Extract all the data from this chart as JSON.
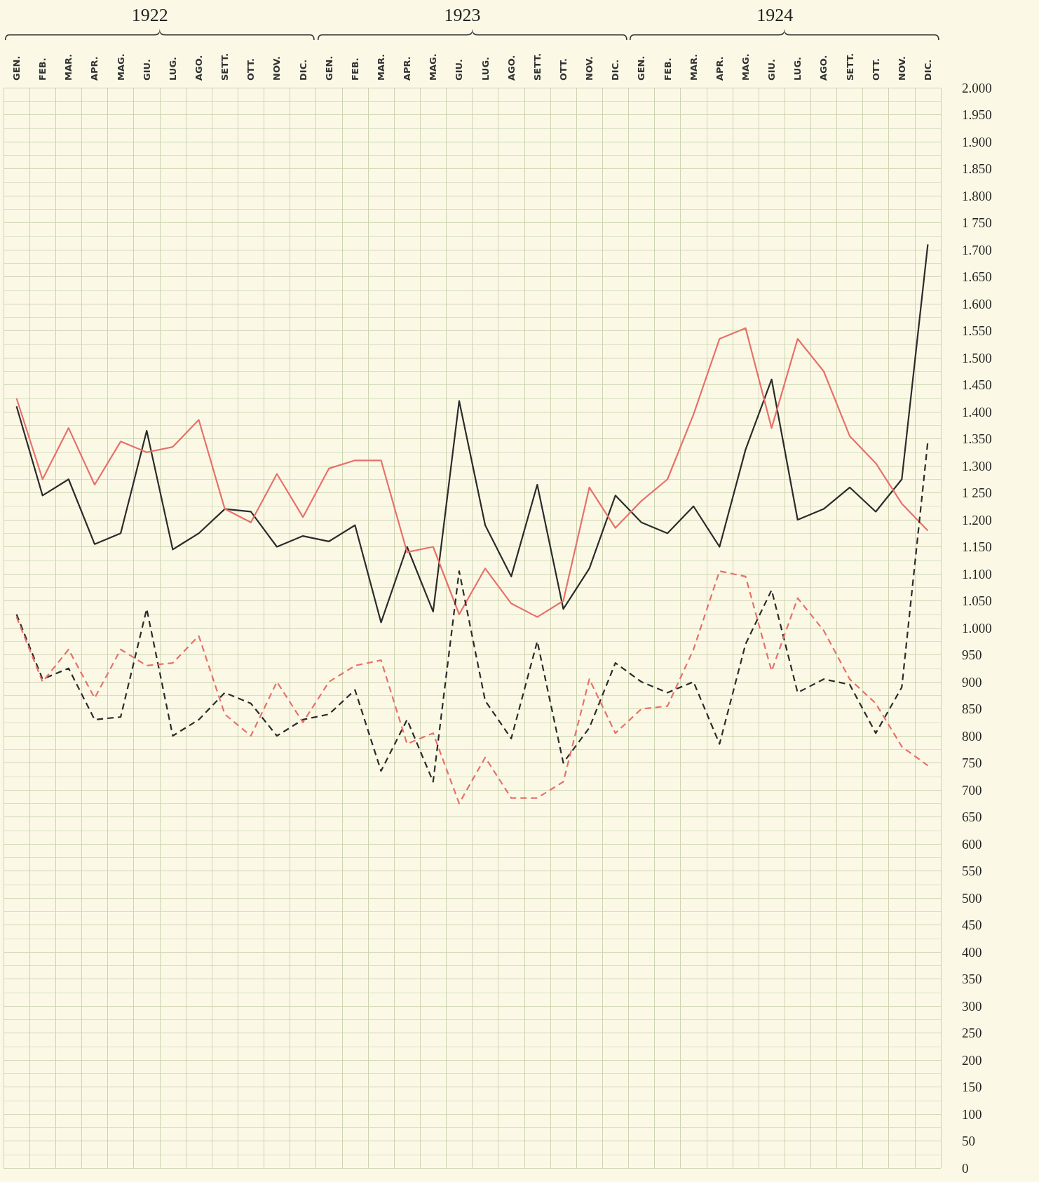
{
  "chart_data": {
    "type": "line",
    "annotations": [
      "1922",
      "1923",
      "1924"
    ],
    "categories": [
      "GEN.",
      "FEB.",
      "MAR.",
      "APR.",
      "MAG.",
      "GIU.",
      "LUG.",
      "AGO.",
      "SETT.",
      "OTT.",
      "NOV.",
      "DIC.",
      "GEN.",
      "FEB.",
      "MAR.",
      "APR.",
      "MAG.",
      "GIU.",
      "LUG.",
      "AGO.",
      "SETT.",
      "OTT.",
      "NOV.",
      "DIC.",
      "GEN.",
      "FEB.",
      "MAR.",
      "APR.",
      "MAG.",
      "GIU.",
      "LUG.",
      "AGO.",
      "SETT.",
      "OTT.",
      "NOV.",
      "DIC."
    ],
    "series": [
      {
        "color": "#2b2b2b",
        "line_style": "solid",
        "values": [
          1410,
          1245,
          1275,
          1155,
          1175,
          1365,
          1145,
          1175,
          1220,
          1215,
          1150,
          1170,
          1160,
          1190,
          1010,
          1150,
          1030,
          1420,
          1190,
          1095,
          1265,
          1035,
          1110,
          1245,
          1195,
          1175,
          1225,
          1150,
          1330,
          1460,
          1200,
          1220,
          1260,
          1215,
          1275,
          1710
        ]
      },
      {
        "color": "#e8706a",
        "line_style": "solid",
        "values": [
          1425,
          1275,
          1370,
          1265,
          1345,
          1325,
          1335,
          1385,
          1220,
          1195,
          1285,
          1205,
          1295,
          1310,
          1310,
          1140,
          1150,
          1025,
          1110,
          1045,
          1020,
          1050,
          1260,
          1185,
          1235,
          1275,
          1395,
          1535,
          1555,
          1370,
          1535,
          1475,
          1355,
          1305,
          1230,
          1180
        ]
      },
      {
        "color": "#2b2b2b",
        "line_style": "dashed",
        "values": [
          1025,
          905,
          925,
          830,
          835,
          1035,
          800,
          830,
          880,
          860,
          800,
          830,
          840,
          885,
          735,
          830,
          715,
          1105,
          865,
          795,
          975,
          750,
          815,
          935,
          900,
          880,
          900,
          785,
          970,
          1070,
          880,
          905,
          895,
          805,
          890,
          1345
        ]
      },
      {
        "color": "#e8706a",
        "line_style": "dashed",
        "values": [
          1020,
          900,
          960,
          870,
          960,
          930,
          935,
          985,
          840,
          800,
          900,
          825,
          900,
          930,
          940,
          785,
          805,
          675,
          760,
          685,
          685,
          715,
          905,
          805,
          850,
          855,
          960,
          1105,
          1095,
          920,
          1055,
          995,
          905,
          860,
          780,
          745
        ]
      }
    ],
    "ylim": [
      0,
      2000
    ],
    "yticks": [
      0,
      50,
      100,
      150,
      200,
      250,
      300,
      350,
      400,
      450,
      500,
      550,
      600,
      650,
      700,
      750,
      800,
      850,
      900,
      950,
      {
        "value": 1000,
        "label": "1.000"
      },
      {
        "value": 1050,
        "label": "1.050"
      },
      {
        "value": 1100,
        "label": "1.100"
      },
      {
        "value": 1150,
        "label": "1.150"
      },
      {
        "value": 1200,
        "label": "1.200"
      },
      {
        "value": 1250,
        "label": "1 250"
      },
      {
        "value": 1300,
        "label": "1.300"
      },
      {
        "value": 1350,
        "label": "1.350"
      },
      {
        "value": 1400,
        "label": "1.400"
      },
      {
        "value": 1450,
        "label": "1.450"
      },
      {
        "value": 1500,
        "label": "1.500"
      },
      {
        "value": 1550,
        "label": "1.550"
      },
      {
        "value": 1600,
        "label": "1.600"
      },
      {
        "value": 1650,
        "label": "1.650"
      },
      {
        "value": 1700,
        "label": "1.700"
      },
      {
        "value": 1750,
        "label": "1 750"
      },
      {
        "value": 1800,
        "label": "1.800"
      },
      {
        "value": 1850,
        "label": "1.850"
      },
      {
        "value": 1900,
        "label": "1.900"
      },
      {
        "value": 1950,
        "label": "1.950"
      },
      {
        "value": 2000,
        "label": "2.000"
      }
    ],
    "grid": true,
    "marker": "none"
  }
}
